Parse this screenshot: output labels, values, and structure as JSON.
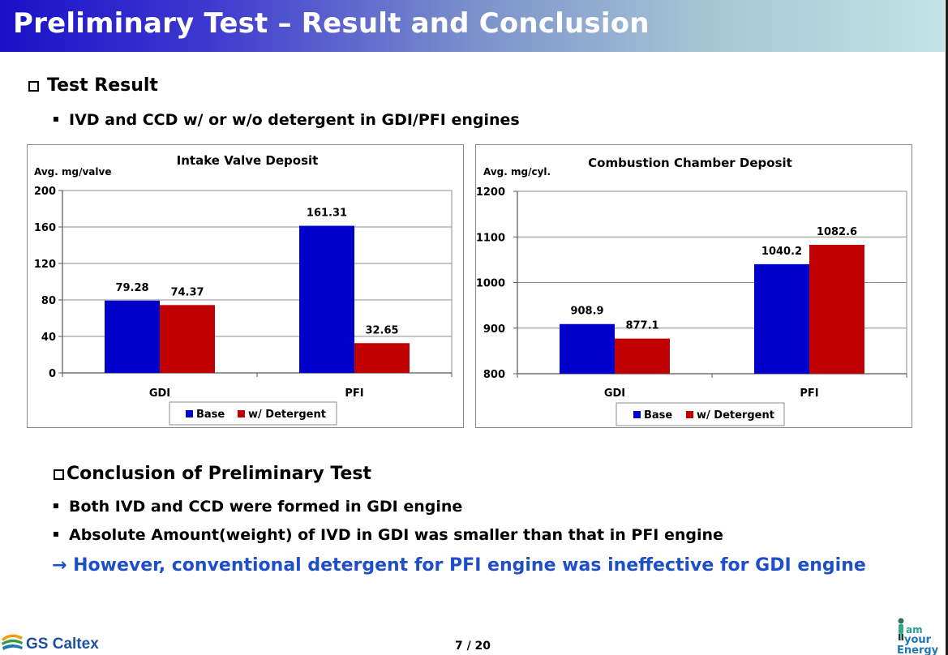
{
  "title": "Preliminary Test – Result and Conclusion",
  "section1": {
    "heading": "Test Result",
    "bullet": "IVD and CCD w/ or w/o detergent in GDI/PFI engines"
  },
  "chart_data": [
    {
      "type": "bar",
      "title": "Intake Valve Deposit",
      "ylabel": "Avg. mg/valve",
      "xlabel": "",
      "categories": [
        "GDI",
        "PFI"
      ],
      "series": [
        {
          "name": "Base",
          "color": "#0000cc",
          "values": [
            79.28,
            161.31
          ],
          "labels": [
            "79.28",
            "161.31"
          ]
        },
        {
          "name": "w/ Detergent",
          "color": "#c00000",
          "values": [
            74.37,
            32.65
          ],
          "labels": [
            "74.37",
            "32.65"
          ]
        }
      ],
      "ylim": [
        0,
        200
      ],
      "yticks": [
        0,
        40,
        80,
        120,
        160,
        200
      ],
      "ytick_labels": [
        "0",
        "40",
        "80",
        "120",
        "160",
        "200"
      ],
      "grid": true,
      "legend": "bottom"
    },
    {
      "type": "bar",
      "title": "Combustion Chamber Deposit",
      "ylabel": "Avg. mg/cyl.",
      "xlabel": "",
      "categories": [
        "GDI",
        "PFI"
      ],
      "series": [
        {
          "name": "Base",
          "color": "#0000cc",
          "values": [
            908.9,
            1040.2
          ],
          "labels": [
            "908.9",
            "1040.2"
          ]
        },
        {
          "name": "w/ Detergent",
          "color": "#c00000",
          "values": [
            877.1,
            1082.6
          ],
          "labels": [
            "877.1",
            "1082.6"
          ]
        }
      ],
      "ylim": [
        800,
        1200
      ],
      "yticks": [
        800,
        900,
        1000,
        1100,
        1200
      ],
      "ytick_labels": [
        "800",
        "900",
        "1000",
        "1100",
        "1200"
      ],
      "grid": true,
      "legend": "bottom"
    }
  ],
  "section2": {
    "heading": "Conclusion of Preliminary Test",
    "bullets": [
      "Both IVD and CCD were formed in GDI engine",
      "Absolute Amount(weight) of IVD in GDI was smaller than that in PFI engine"
    ],
    "arrow_text": "→ However, conventional detergent for PFI engine was ineffective for GDI engine"
  },
  "footer": {
    "logo_text": "GS Caltex",
    "page": "7 / 20",
    "slogan": [
      "am",
      "your",
      "Energy"
    ]
  }
}
